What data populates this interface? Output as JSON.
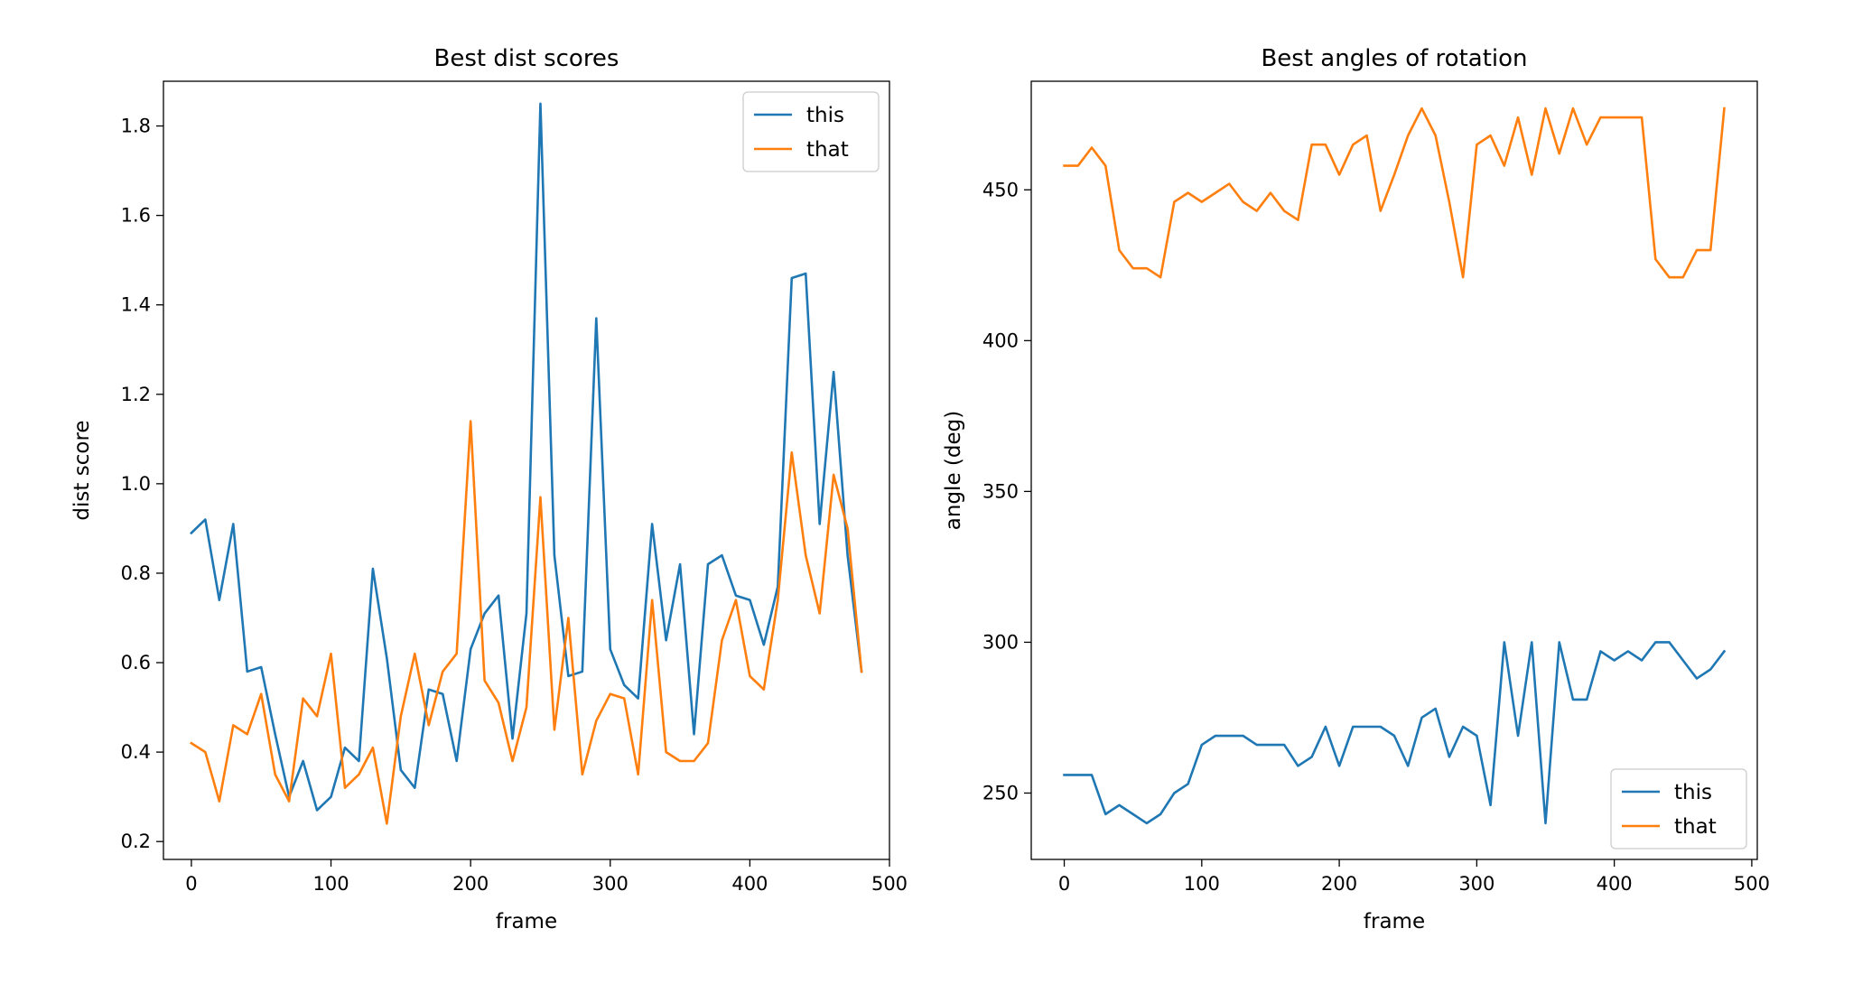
{
  "chart_data": [
    {
      "type": "line",
      "title": "Best dist scores",
      "xlabel": "frame",
      "ylabel": "dist score",
      "xlim": [
        -20,
        500
      ],
      "ylim": [
        0.16,
        1.9
      ],
      "xticks": [
        0,
        100,
        200,
        300,
        400,
        500
      ],
      "yticks": [
        0.2,
        0.4,
        0.6,
        0.8,
        1.0,
        1.2,
        1.4,
        1.6,
        1.8
      ],
      "ytick_decimals": 1,
      "grid": false,
      "legend_position": "top-right",
      "x": [
        0,
        10,
        20,
        30,
        40,
        50,
        60,
        70,
        80,
        90,
        100,
        110,
        120,
        130,
        140,
        150,
        160,
        170,
        180,
        190,
        200,
        210,
        220,
        230,
        240,
        250,
        260,
        270,
        280,
        290,
        300,
        310,
        320,
        330,
        340,
        350,
        360,
        370,
        380,
        390,
        400,
        410,
        420,
        430,
        440,
        450,
        460,
        470,
        480
      ],
      "series": [
        {
          "name": "this",
          "color": "#1f77b4",
          "values": [
            0.89,
            0.92,
            0.74,
            0.91,
            0.58,
            0.59,
            0.44,
            0.3,
            0.38,
            0.27,
            0.3,
            0.41,
            0.38,
            0.81,
            0.61,
            0.36,
            0.32,
            0.54,
            0.53,
            0.38,
            0.63,
            0.71,
            0.75,
            0.43,
            0.71,
            1.85,
            0.84,
            0.57,
            0.58,
            1.37,
            0.63,
            0.55,
            0.52,
            0.91,
            0.65,
            0.82,
            0.44,
            0.82,
            0.84,
            0.75,
            0.74,
            0.64,
            0.77,
            1.46,
            1.47,
            0.91,
            1.25,
            0.84,
            0.58
          ]
        },
        {
          "name": "that",
          "color": "#ff7f0e",
          "values": [
            0.42,
            0.4,
            0.29,
            0.46,
            0.44,
            0.53,
            0.35,
            0.29,
            0.52,
            0.48,
            0.62,
            0.32,
            0.35,
            0.41,
            0.24,
            0.48,
            0.62,
            0.46,
            0.58,
            0.62,
            1.14,
            0.56,
            0.51,
            0.38,
            0.5,
            0.97,
            0.45,
            0.7,
            0.35,
            0.47,
            0.53,
            0.52,
            0.35,
            0.74,
            0.4,
            0.38,
            0.38,
            0.42,
            0.65,
            0.74,
            0.57,
            0.54,
            0.74,
            1.07,
            0.84,
            0.71,
            1.02,
            0.9,
            0.58
          ]
        }
      ]
    },
    {
      "type": "line",
      "title": "Best angles of rotation",
      "xlabel": "frame",
      "ylabel": "angle (deg)",
      "xlim": [
        -24,
        504
      ],
      "ylim": [
        228,
        486
      ],
      "xticks": [
        0,
        100,
        200,
        300,
        400,
        500
      ],
      "yticks": [
        250,
        300,
        350,
        400,
        450
      ],
      "ytick_decimals": 0,
      "grid": false,
      "legend_position": "bottom-right",
      "x": [
        0,
        10,
        20,
        30,
        40,
        50,
        60,
        70,
        80,
        90,
        100,
        110,
        120,
        130,
        140,
        150,
        160,
        170,
        180,
        190,
        200,
        210,
        220,
        230,
        240,
        250,
        260,
        270,
        280,
        290,
        300,
        310,
        320,
        330,
        340,
        350,
        360,
        370,
        380,
        390,
        400,
        410,
        420,
        430,
        440,
        450,
        460,
        470,
        480
      ],
      "series": [
        {
          "name": "this",
          "color": "#1f77b4",
          "values": [
            256,
            256,
            256,
            243,
            246,
            243,
            240,
            243,
            250,
            253,
            266,
            269,
            269,
            269,
            266,
            266,
            266,
            259,
            262,
            272,
            259,
            272,
            272,
            272,
            269,
            259,
            275,
            278,
            262,
            272,
            269,
            246,
            300,
            269,
            300,
            240,
            300,
            281,
            281,
            297,
            294,
            297,
            294,
            300,
            300,
            294,
            288,
            291,
            297
          ]
        },
        {
          "name": "that",
          "color": "#ff7f0e",
          "values": [
            458,
            458,
            464,
            458,
            430,
            424,
            424,
            421,
            446,
            449,
            446,
            449,
            452,
            446,
            443,
            449,
            443,
            440,
            465,
            465,
            455,
            465,
            468,
            443,
            455,
            468,
            477,
            468,
            446,
            421,
            465,
            468,
            458,
            474,
            455,
            477,
            462,
            477,
            465,
            474,
            474,
            474,
            474,
            427,
            421,
            421,
            430,
            430,
            477
          ]
        }
      ]
    }
  ]
}
